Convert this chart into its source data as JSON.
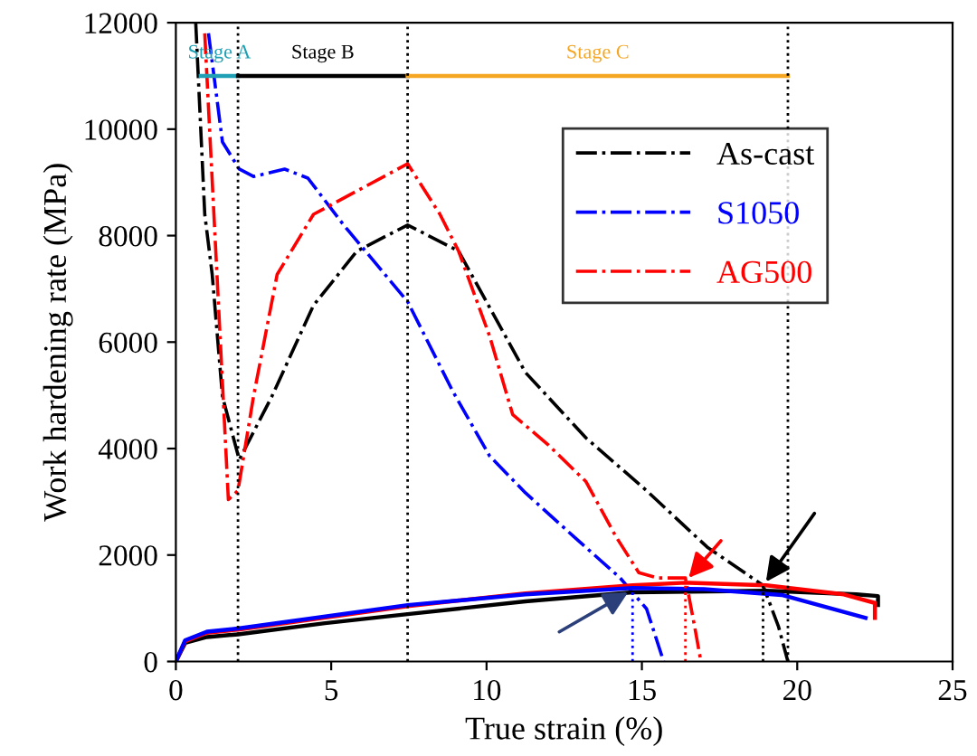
{
  "chart_data": {
    "type": "line",
    "xlabel": "True strain (%)",
    "ylabel": "Work hardening rate (MPa)",
    "xlim": [
      0,
      25
    ],
    "ylim": [
      0,
      12000
    ],
    "xticks": [
      0,
      5,
      10,
      15,
      20,
      25
    ],
    "yticks": [
      0,
      2000,
      4000,
      6000,
      8000,
      10000,
      12000
    ],
    "grid": false,
    "legend": "top right",
    "line_style": "solid",
    "marker": "none",
    "series": [
      {
        "name": "As-cast",
        "color": "#000000",
        "line_style": "dashdot",
        "x": [
          0.64,
          0.93,
          1.17,
          1.5,
          2.04,
          3.09,
          4.43,
          5.83,
          7.46,
          9.1,
          11.25,
          13.2,
          15.15,
          17.1,
          18.9,
          19.4,
          19.7
        ],
        "values": [
          12000,
          8400,
          7270,
          4980,
          3790,
          4980,
          6690,
          7710,
          8200,
          7710,
          5430,
          4200,
          3210,
          2150,
          1430,
          650,
          0
        ]
      },
      {
        "name": "S1050",
        "color": "#0000ff",
        "line_style": "dashdot",
        "x": [
          1.05,
          1.5,
          2.04,
          2.5,
          3.5,
          4.25,
          5.4,
          7.46,
          8.9,
          10.1,
          11.25,
          12.8,
          14.3,
          15.15,
          15.7
        ],
        "values": [
          11800,
          9760,
          9250,
          9110,
          9250,
          9080,
          8200,
          6760,
          5090,
          3860,
          3170,
          2350,
          1570,
          990,
          0
        ]
      },
      {
        "name": "AG500",
        "color": "#ff0000",
        "line_style": "dashdot",
        "x": [
          0.93,
          1.69,
          2.0,
          2.5,
          3.26,
          4.43,
          7.46,
          8.5,
          9.1,
          10.1,
          10.84,
          12.0,
          13.2,
          14.16,
          14.9,
          15.5,
          16.4,
          16.7,
          16.9
        ],
        "values": [
          11800,
          3040,
          3210,
          4980,
          7270,
          8400,
          9350,
          8400,
          7710,
          6110,
          4640,
          4060,
          3380,
          2350,
          1670,
          1570,
          1570,
          650,
          0
        ]
      },
      {
        "color": "#000000",
        "x": [
          0,
          0.3,
          1,
          2,
          4.8,
          7.46,
          11.25,
          14.7,
          19,
          21.9,
          22.6,
          22.6
        ],
        "values": [
          0,
          350,
          460,
          510,
          720,
          890,
          1130,
          1300,
          1330,
          1260,
          1230,
          1060
        ]
      },
      {
        "color": "#ff0000",
        "x": [
          0,
          0.3,
          1,
          2,
          7.46,
          11.25,
          14.7,
          16.4,
          19,
          21.5,
          22.5,
          22.5
        ],
        "values": [
          0,
          380,
          540,
          600,
          1040,
          1280,
          1430,
          1480,
          1430,
          1260,
          1100,
          820
        ]
      },
      {
        "color": "#0000ff",
        "x": [
          0,
          0.3,
          1,
          2,
          7.46,
          11.25,
          14.7,
          17,
          19.5,
          22.2
        ],
        "values": [
          0,
          400,
          560,
          620,
          1060,
          1260,
          1380,
          1360,
          1250,
          820
        ]
      },
      {
        "color": "#0000ff",
        "line_style": "dotted",
        "x": [
          14.7,
          14.7
        ],
        "values": [
          0,
          1350
        ]
      },
      {
        "color": "#ff0000",
        "line_style": "dotted",
        "x": [
          16.4,
          16.4
        ],
        "values": [
          0,
          1500
        ]
      },
      {
        "color": "#000000",
        "line_style": "dotted",
        "x": [
          18.9,
          18.9
        ],
        "values": [
          0,
          1420
        ]
      },
      {
        "name": "Stage A",
        "color": "#1fa0b4",
        "x": [
          0.8,
          2.0
        ],
        "values": [
          11000,
          11000
        ]
      },
      {
        "name": "Stage B",
        "color": "#000000",
        "x": [
          2.0,
          7.46
        ],
        "values": [
          11000,
          11000
        ]
      },
      {
        "name": "Stage C",
        "color": "#f5a623",
        "x": [
          7.46,
          19.7
        ],
        "values": [
          11000,
          11000
        ]
      }
    ],
    "ref_lines": [
      {
        "axis": "x",
        "value": 2.0,
        "color": "#000000",
        "line_style": "dotted"
      },
      {
        "axis": "x",
        "value": 7.46,
        "color": "#000000",
        "line_style": "dotted"
      },
      {
        "axis": "x",
        "value": 19.7,
        "color": "#000000",
        "line_style": "dotted"
      }
    ]
  }
}
